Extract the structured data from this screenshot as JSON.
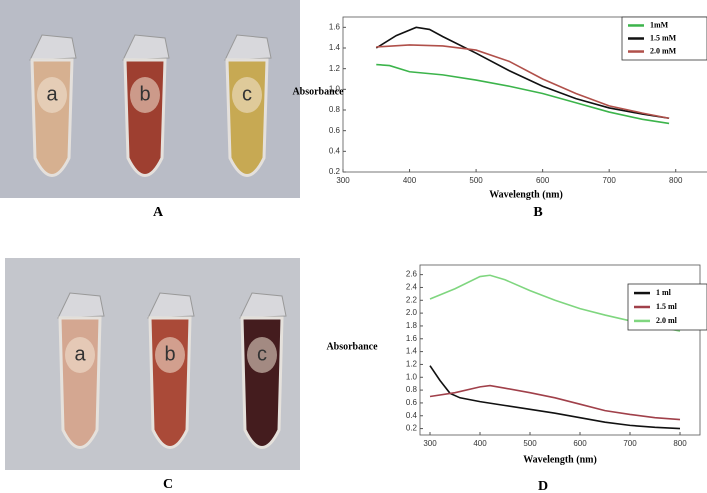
{
  "panel_labels": [
    "A",
    "B",
    "C",
    "D"
  ],
  "photos": [
    {
      "tubes": [
        "a",
        "b",
        "c"
      ]
    },
    {
      "tubes": [
        "a",
        "b",
        "c"
      ]
    }
  ],
  "chart_data": [
    {
      "type": "line",
      "xlabel": "Wavelength (nm)",
      "ylabel": "Absorbance",
      "xlim": [
        300,
        850
      ],
      "xticks": [
        300,
        400,
        500,
        600,
        700,
        800
      ],
      "ylim": [
        0.2,
        1.7
      ],
      "yticks": [
        0.2,
        0.4,
        0.6,
        0.8,
        {
          "value": 1,
          "label": "1.0"
        },
        1.2,
        1.4,
        1.6
      ],
      "legend": "upper right",
      "series": [
        {
          "name": "1mM",
          "color": "#3cb44b",
          "x": [
            350,
            370,
            400,
            450,
            500,
            550,
            600,
            650,
            700,
            750,
            790
          ],
          "values": [
            1.24,
            1.23,
            1.17,
            1.14,
            1.09,
            1.03,
            0.96,
            0.87,
            0.78,
            0.71,
            0.67
          ]
        },
        {
          "name": "1.5 mM",
          "color": "#111111",
          "x": [
            350,
            380,
            410,
            430,
            450,
            500,
            550,
            600,
            650,
            700,
            750,
            790
          ],
          "values": [
            1.4,
            1.52,
            1.6,
            1.58,
            1.51,
            1.35,
            1.18,
            1.03,
            0.91,
            0.82,
            0.76,
            0.72
          ]
        },
        {
          "name": "2.0 mM",
          "color": "#b0504a",
          "x": [
            350,
            400,
            450,
            500,
            550,
            600,
            650,
            700,
            750,
            790
          ],
          "values": [
            1.41,
            1.43,
            1.42,
            1.38,
            1.27,
            1.1,
            0.96,
            0.84,
            0.77,
            0.72
          ]
        }
      ]
    },
    {
      "type": "line",
      "xlabel": "Wavelength (nm)",
      "ylabel": "Absorbance",
      "xlim": [
        280,
        840
      ],
      "xticks": [
        300,
        400,
        500,
        600,
        700,
        800
      ],
      "ylim": [
        0.1,
        2.75
      ],
      "yticks": [
        0.2,
        0.4,
        0.6,
        0.8,
        {
          "value": 1,
          "label": "1.0"
        },
        1.2,
        1.4,
        1.6,
        1.8,
        {
          "value": 2,
          "label": "2.0"
        },
        2.2,
        2.4,
        2.6
      ],
      "legend": "upper right",
      "series": [
        {
          "name": "1 ml",
          "color": "#111111",
          "x": [
            300,
            320,
            340,
            360,
            400,
            450,
            500,
            550,
            600,
            650,
            700,
            750,
            800
          ],
          "values": [
            1.18,
            0.95,
            0.75,
            0.68,
            0.62,
            0.56,
            0.5,
            0.44,
            0.37,
            0.3,
            0.25,
            0.22,
            0.2
          ]
        },
        {
          "name": "1.5 ml",
          "color": "#a0404a",
          "x": [
            300,
            350,
            400,
            420,
            450,
            500,
            550,
            600,
            650,
            700,
            750,
            800
          ],
          "values": [
            0.7,
            0.76,
            0.85,
            0.87,
            0.83,
            0.76,
            0.68,
            0.58,
            0.48,
            0.42,
            0.37,
            0.34
          ]
        },
        {
          "name": "2.0 ml",
          "color": "#7fd67f",
          "x": [
            300,
            350,
            400,
            420,
            450,
            500,
            550,
            600,
            650,
            700,
            750,
            800
          ],
          "values": [
            2.22,
            2.38,
            2.57,
            2.59,
            2.52,
            2.35,
            2.2,
            2.07,
            1.97,
            1.88,
            1.8,
            1.72
          ]
        }
      ]
    }
  ]
}
